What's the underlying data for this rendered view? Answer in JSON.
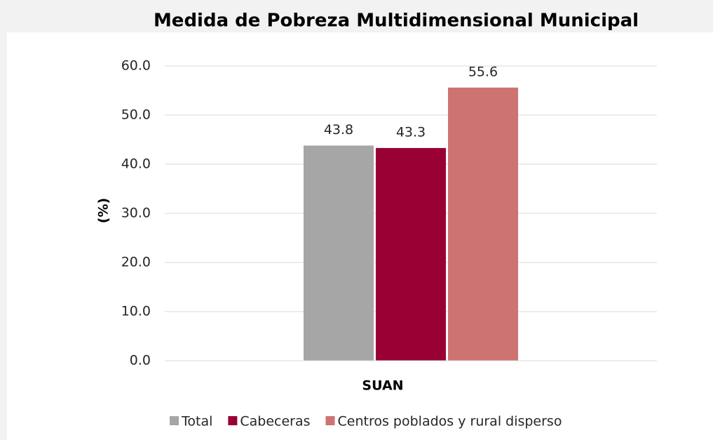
{
  "chart_data": {
    "type": "bar",
    "title": "Medida de Pobreza Multidimensional Municipal",
    "ylabel": "(%)",
    "categories": [
      "SUAN"
    ],
    "series": [
      {
        "name": "Total",
        "color": "#a6a6a6",
        "values": [
          43.8
        ]
      },
      {
        "name": "Cabeceras",
        "color": "#990033",
        "values": [
          43.3
        ]
      },
      {
        "name": "Centros poblados y rural disperso",
        "color": "#cd7371",
        "values": [
          55.6
        ]
      }
    ],
    "ylim": [
      0,
      60
    ],
    "yticks": [
      {
        "value": 0,
        "label": "0.0"
      },
      {
        "value": 10,
        "label": "10.0"
      },
      {
        "value": 20,
        "label": "20.0"
      },
      {
        "value": 30,
        "label": "30.0"
      },
      {
        "value": 40,
        "label": "40.0"
      },
      {
        "value": 50,
        "label": "50.0"
      },
      {
        "value": 60,
        "label": "60.0"
      }
    ],
    "grid": true,
    "legend": "bottom"
  }
}
